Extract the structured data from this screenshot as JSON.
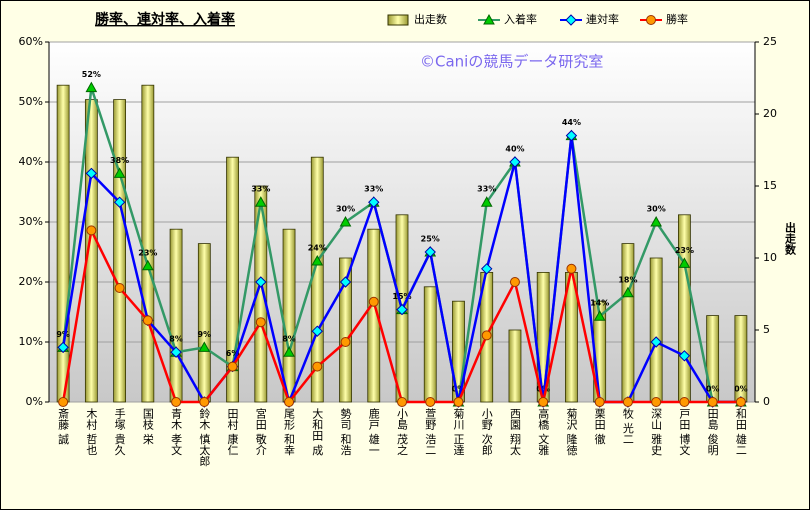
{
  "chart_data": {
    "type": "combo",
    "title": "勝率、連対率、入着率",
    "annotation": "©Caniの競馬データ研究室",
    "y2_label": "出走数",
    "categories": [
      "斎藤 誠",
      "木村 哲也",
      "手塚 貴久",
      "国枝 栄",
      "青木 孝文",
      "鈴木 慎太郎",
      "田村 康仁",
      "宮田 敬介",
      "尾形 和幸",
      "大和田 成",
      "勢司 和浩",
      "鹿戸 雄一",
      "小島 茂之",
      "萱野 浩二",
      "菊川 正達",
      "小野 次郎",
      "西園 翔太",
      "高橋 文雅",
      "菊沢 隆徳",
      "栗田 徹",
      "牧 光二",
      "深山 雅史",
      "戸田 博文",
      "田島 俊明",
      "和田 雄二"
    ],
    "series": [
      {
        "name": "出走数",
        "type": "bar",
        "axis": "y2",
        "color": "#ffff66",
        "values": [
          22,
          21,
          21,
          22,
          12,
          11,
          17,
          15,
          12,
          17,
          10,
          12,
          13,
          8,
          7,
          9,
          5,
          9,
          9,
          7,
          11,
          10,
          13,
          6,
          6
        ]
      },
      {
        "name": "入着率",
        "type": "line",
        "color": "#339966",
        "marker": "triangle",
        "marker_color": "#00cc00",
        "values": [
          9.1,
          52.4,
          38.1,
          22.7,
          8.3,
          9.1,
          5.9,
          33.3,
          8.3,
          23.5,
          30,
          33.3,
          15.4,
          25,
          0,
          33.3,
          40,
          0,
          44.4,
          14.3,
          18.2,
          30,
          23.1,
          0,
          0
        ],
        "value_labels": [
          "9%",
          "52%",
          "38%",
          "23%",
          "8%",
          "9%",
          "6%",
          "33%",
          "8%",
          "24%",
          "30%",
          "33%",
          "15%",
          "25%",
          "0%",
          "33%",
          "40%",
          "0%",
          "44%",
          "14%",
          "18%",
          "30%",
          "23%",
          "0%",
          "0%"
        ]
      },
      {
        "name": "連対率",
        "type": "line",
        "color": "#0000ff",
        "marker": "diamond",
        "marker_color": "#00ffff",
        "values": [
          9.1,
          38.1,
          33.3,
          13.6,
          8.3,
          0,
          5.9,
          20,
          0,
          11.8,
          20,
          33.3,
          15.4,
          25,
          0,
          22.2,
          40,
          0,
          44.4,
          0,
          0,
          10,
          7.7,
          0,
          0
        ]
      },
      {
        "name": "勝率",
        "type": "line",
        "color": "#ff0000",
        "marker": "circle",
        "marker_color": "#ff9900",
        "values": [
          0,
          28.6,
          19,
          13.6,
          0,
          0,
          5.9,
          13.3,
          0,
          5.9,
          10,
          16.7,
          0,
          0,
          0,
          11.1,
          20,
          0,
          22.2,
          0,
          0,
          0,
          0,
          0,
          0
        ]
      }
    ],
    "ylim": [
      0,
      60
    ],
    "yticks": [
      {
        "value": 0,
        "label": "0%"
      },
      {
        "value": 10,
        "label": "10%"
      },
      {
        "value": 20,
        "label": "20%"
      },
      {
        "value": 30,
        "label": "30%"
      },
      {
        "value": 40,
        "label": "40%"
      },
      {
        "value": 50,
        "label": "50%"
      },
      {
        "value": 60,
        "label": "60%"
      }
    ],
    "y2lim": [
      0,
      25
    ],
    "y2ticks": [
      0,
      5,
      10,
      15,
      20,
      25
    ],
    "grid": true,
    "legend": "top-right"
  }
}
